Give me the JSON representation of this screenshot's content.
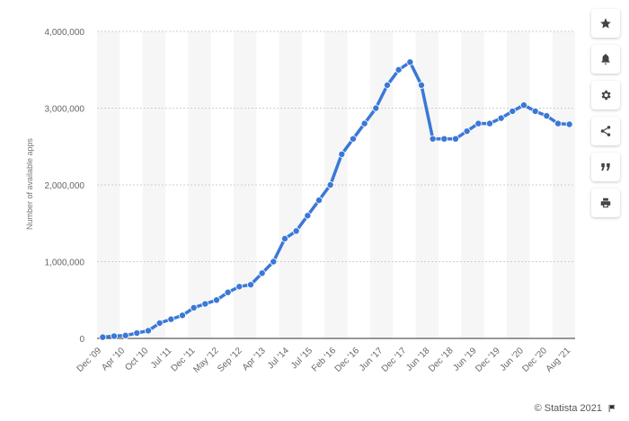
{
  "chart_data": {
    "type": "line",
    "ylabel": "Number of available apps",
    "ylim": [
      0,
      4000000
    ],
    "y_ticks": [
      "0",
      "1,000,000",
      "2,000,000",
      "3,000,000",
      "4,000,000"
    ],
    "y_tick_values": [
      0,
      1000000,
      2000000,
      3000000,
      4000000
    ],
    "x_ticks": [
      "Dec '09",
      "Apr '10",
      "Oct '10",
      "Jul '11",
      "Dec '11",
      "May '12",
      "Sep '12",
      "Apr '13",
      "Jul '14",
      "Jul '15",
      "Feb '16",
      "Dec '16",
      "Jun '17",
      "Dec '17",
      "Jun '18",
      "Dec '18",
      "Jun '19",
      "Dec '19",
      "Jun '20",
      "Dec '20",
      "Aug '21"
    ],
    "grid": true,
    "series": [
      {
        "color": "#3a78d8",
        "values": [
          16000,
          30000,
          38000,
          70000,
          100000,
          200000,
          250000,
          300000,
          400000,
          450000,
          500000,
          600000,
          675000,
          700000,
          850000,
          1000000,
          1300000,
          1400000,
          1600000,
          1800000,
          2000000,
          2400000,
          2600000,
          2800000,
          3000000,
          3300000,
          3500000,
          3600000,
          3300000,
          2600000,
          2600000,
          2600000,
          2700000,
          2800000,
          2800000,
          2870000,
          2960000,
          3040000,
          2960000,
          2900000,
          2800000,
          2790000
        ]
      }
    ]
  },
  "footer": {
    "credit": "© Statista 2021"
  },
  "toolbar": {
    "icons": [
      "star-icon",
      "bell-icon",
      "gear-icon",
      "share-icon",
      "quote-icon",
      "print-icon"
    ]
  }
}
